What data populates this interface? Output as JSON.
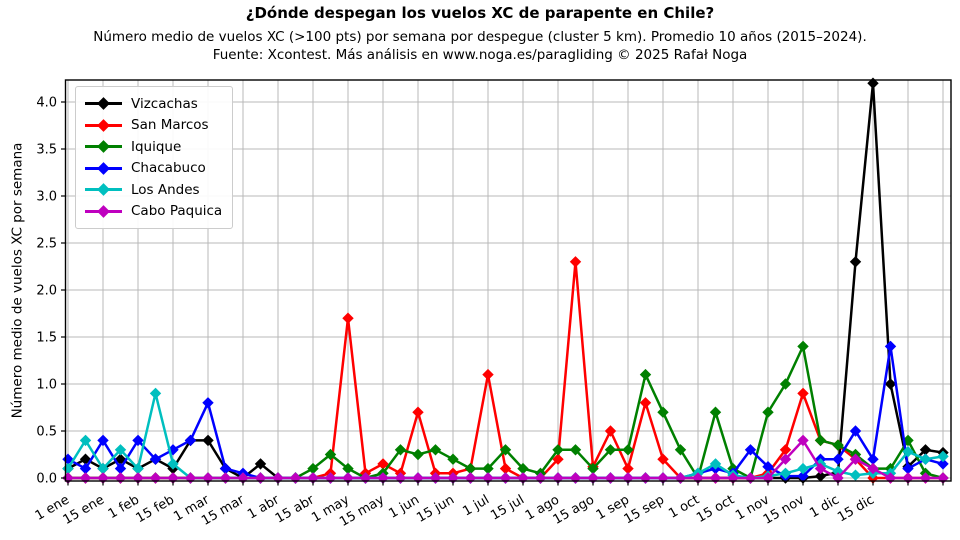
{
  "header": {
    "title": "¿Dónde despegan los vuelos XC de parapente en Chile?",
    "subtitle1": "Número medio de vuelos XC (>100 pts) por semana por despegue (cluster 5 km). Promedio 10 años (2015–2024).",
    "subtitle2": "Fuente: Xcontest. Más análisis en www.noga.es/paragliding © 2025 Rafał Noga"
  },
  "axes": {
    "y_label": "Número medio de vuelos XC por semana",
    "y_tick_labels": [
      "0.0",
      "0.5",
      "1.0",
      "1.5",
      "2.0",
      "2.5",
      "3.0",
      "3.5",
      "4.0"
    ],
    "x_tick_labels": [
      "1 ene",
      "15 ene",
      "1 feb",
      "15 feb",
      "1 mar",
      "15 mar",
      "1 abr",
      "15 abr",
      "1 may",
      "15 may",
      "1 jun",
      "15 jun",
      "1 jul",
      "15 jul",
      "1 ago",
      "15 ago",
      "1 sep",
      "15 sep",
      "1 oct",
      "15 oct",
      "1 nov",
      "15 nov",
      "1 dic",
      "15 dic"
    ]
  },
  "chart_data": {
    "type": "line",
    "title": "¿Dónde despegan los vuelos XC de parapente en Chile?",
    "xlabel": "",
    "ylabel": "Número medio de vuelos XC por semana",
    "x_unit": "semana (52 semanas del año, un punto por semana)",
    "n_points": 51,
    "x_tick_labels": [
      "1 ene",
      "15 ene",
      "1 feb",
      "15 feb",
      "1 mar",
      "15 mar",
      "1 abr",
      "15 abr",
      "1 may",
      "15 may",
      "1 jun",
      "15 jun",
      "1 jul",
      "15 jul",
      "1 ago",
      "15 ago",
      "1 sep",
      "15 sep",
      "1 oct",
      "15 oct",
      "1 nov",
      "15 nov",
      "1 dic",
      "15 dic"
    ],
    "ylim": [
      -0.03,
      4.23
    ],
    "y_ticks": [
      0.0,
      0.5,
      1.0,
      1.5,
      2.0,
      2.5,
      3.0,
      3.5,
      4.0
    ],
    "grid": true,
    "grid_color": "#b8b8b8",
    "legend_position": "upper-left",
    "marker": "diamond",
    "series": [
      {
        "name": "Vizcachas",
        "color": "#000000",
        "values": [
          0.1,
          0.2,
          0.1,
          0.2,
          0.1,
          0.2,
          0.1,
          0.4,
          0.4,
          0.1,
          0,
          0.15,
          0,
          0,
          0,
          0,
          0,
          0,
          0,
          0,
          0,
          0,
          0,
          0,
          0,
          0,
          0,
          0,
          0,
          0,
          0,
          0,
          0,
          0,
          0,
          0,
          0,
          0,
          0,
          0,
          0,
          0,
          0,
          0.02,
          0.06,
          2.3,
          4.2,
          1.0,
          0.12,
          0.3,
          0.27
        ]
      },
      {
        "name": "San Marcos",
        "color": "#ff0000",
        "values": [
          0,
          0,
          0,
          0,
          0,
          0,
          0,
          0,
          0,
          0,
          0,
          0,
          0,
          0,
          0,
          0.05,
          1.7,
          0.05,
          0.15,
          0.05,
          0.7,
          0.05,
          0.05,
          0.1,
          1.1,
          0.1,
          0,
          0,
          0.2,
          2.3,
          0.12,
          0.5,
          0.1,
          0.8,
          0.2,
          0,
          0,
          0,
          0,
          0,
          0.05,
          0.3,
          0.9,
          0.4,
          0.35,
          0.2,
          0,
          0,
          0,
          0,
          0
        ]
      },
      {
        "name": "Iquique",
        "color": "#008000",
        "values": [
          0,
          0,
          0,
          0,
          0,
          0,
          0,
          0,
          0,
          0,
          0,
          0,
          0,
          0,
          0.1,
          0.25,
          0.1,
          0,
          0.05,
          0.3,
          0.25,
          0.3,
          0.2,
          0.1,
          0.1,
          0.3,
          0.1,
          0.05,
          0.3,
          0.3,
          0.1,
          0.3,
          0.3,
          1.1,
          0.7,
          0.3,
          0,
          0.7,
          0.1,
          0,
          0.7,
          1.0,
          1.4,
          0.4,
          0.35,
          0.25,
          0.1,
          0.1,
          0.4,
          0.05,
          0
        ]
      },
      {
        "name": "Chacabuco",
        "color": "#0000ff",
        "values": [
          0.2,
          0.1,
          0.4,
          0.1,
          0.4,
          0.2,
          0.3,
          0.4,
          0.8,
          0.1,
          0.05,
          0,
          0,
          0,
          0,
          0,
          0,
          0,
          0,
          0,
          0,
          0,
          0,
          0,
          0,
          0,
          0,
          0,
          0,
          0,
          0,
          0,
          0,
          0,
          0,
          0,
          0.05,
          0.1,
          0.05,
          0.3,
          0.12,
          0.02,
          0.02,
          0.2,
          0.2,
          0.5,
          0.2,
          1.4,
          0.1,
          0.2,
          0.15
        ]
      },
      {
        "name": "Los Andes",
        "color": "#00bfbf",
        "values": [
          0.1,
          0.4,
          0.1,
          0.3,
          0.1,
          0.9,
          0.15,
          0,
          0,
          0,
          0,
          0,
          0,
          0,
          0,
          0,
          0,
          0,
          0,
          0,
          0,
          0,
          0,
          0,
          0,
          0,
          0,
          0,
          0,
          0,
          0,
          0,
          0,
          0,
          0,
          0,
          0.05,
          0.15,
          0.03,
          0,
          0.02,
          0.05,
          0.1,
          0.15,
          0.07,
          0.03,
          0.05,
          0.05,
          0.28,
          0.2,
          0.23
        ]
      },
      {
        "name": "Cabo Paquica",
        "color": "#bf00bf",
        "values": [
          0,
          0,
          0,
          0,
          0,
          0,
          0,
          0,
          0,
          0,
          0,
          0,
          0,
          0,
          0,
          0,
          0,
          0,
          0,
          0,
          0,
          0,
          0,
          0,
          0,
          0,
          0,
          0,
          0,
          0,
          0,
          0,
          0,
          0,
          0,
          0,
          0,
          0,
          0,
          0,
          0,
          0.2,
          0.4,
          0.1,
          0,
          0.2,
          0.1,
          0,
          0,
          0,
          0
        ]
      }
    ]
  }
}
